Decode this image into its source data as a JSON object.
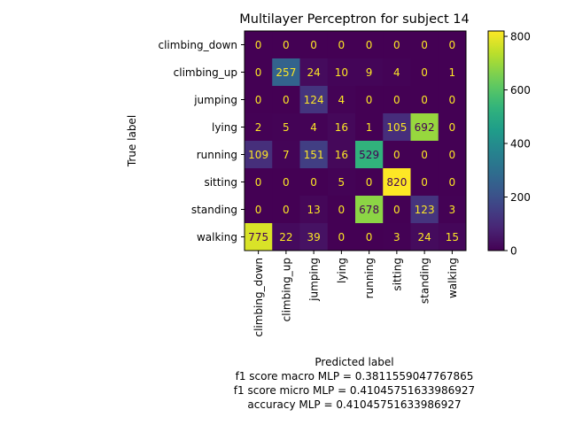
{
  "chart_data": {
    "type": "heatmap",
    "title": "Multilayer Perceptron for subject 14",
    "xlabel": "Predicted label",
    "ylabel": "True label",
    "caption": [
      "f1 score macro MLP = 0.3811559047767865",
      "f1 score micro MLP = 0.41045751633986927",
      "accuracy MLP = 0.41045751633986927"
    ],
    "classes": [
      "climbing_down",
      "climbing_up",
      "jumping",
      "lying",
      "running",
      "sitting",
      "standing",
      "walking"
    ],
    "matrix": [
      [
        0,
        0,
        0,
        0,
        0,
        0,
        0,
        0
      ],
      [
        0,
        257,
        24,
        10,
        9,
        4,
        0,
        1
      ],
      [
        0,
        0,
        124,
        4,
        0,
        0,
        0,
        0
      ],
      [
        2,
        5,
        4,
        16,
        1,
        105,
        692,
        0
      ],
      [
        109,
        7,
        151,
        16,
        529,
        0,
        0,
        0
      ],
      [
        0,
        0,
        0,
        5,
        0,
        820,
        0,
        0
      ],
      [
        0,
        0,
        13,
        0,
        678,
        0,
        123,
        3
      ],
      [
        775,
        22,
        39,
        0,
        0,
        3,
        24,
        15
      ]
    ],
    "colormap": "viridis",
    "vmin": 0,
    "vmax": 820,
    "colorbar_ticks": [
      0,
      200,
      400,
      600,
      800
    ]
  }
}
